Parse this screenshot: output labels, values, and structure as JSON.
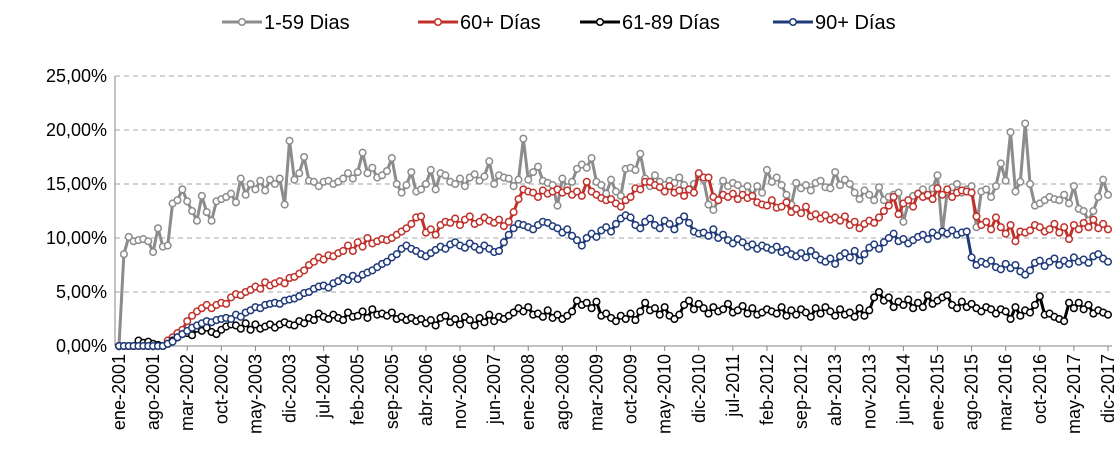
{
  "chart_data": {
    "type": "line",
    "legend": "top",
    "grid": true,
    "categories": [
      "ene-2001",
      null,
      null,
      null,
      null,
      null,
      null,
      "ago-2001",
      null,
      null,
      null,
      null,
      null,
      null,
      "mar-2002",
      null,
      null,
      null,
      null,
      null,
      null,
      "oct-2002",
      null,
      null,
      null,
      null,
      null,
      null,
      "may-2003",
      null,
      null,
      null,
      null,
      null,
      null,
      "dic-2003",
      null,
      null,
      null,
      null,
      null,
      null,
      "jul-2004",
      null,
      null,
      null,
      null,
      null,
      null,
      "feb-2005",
      null,
      null,
      null,
      null,
      null,
      null,
      "sep-2005",
      null,
      null,
      null,
      null,
      null,
      null,
      "abr-2006",
      null,
      null,
      null,
      null,
      null,
      null,
      "nov-2006",
      null,
      null,
      null,
      null,
      null,
      null,
      "jun-2007",
      null,
      null,
      null,
      null,
      null,
      null,
      "ene-2008",
      null,
      null,
      null,
      null,
      null,
      null,
      "ago-2008",
      null,
      null,
      null,
      null,
      null,
      null,
      "mar-2009",
      null,
      null,
      null,
      null,
      null,
      null,
      "oct-2009",
      null,
      null,
      null,
      null,
      null,
      null,
      "may-2010",
      null,
      null,
      null,
      null,
      null,
      null,
      "dic-2010",
      null,
      null,
      null,
      null,
      null,
      null,
      "jul-2011",
      null,
      null,
      null,
      null,
      null,
      null,
      "feb-2012",
      null,
      null,
      null,
      null,
      null,
      null,
      "sep-2012",
      null,
      null,
      null,
      null,
      null,
      null,
      "abr-2013",
      null,
      null,
      null,
      null,
      null,
      null,
      "nov-2013",
      null,
      null,
      null,
      null,
      null,
      null,
      "jun-2014",
      null,
      null,
      null,
      null,
      null,
      null,
      "ene-2015",
      null,
      null,
      null,
      null,
      null,
      null,
      "ago-2015",
      null,
      null,
      null,
      null,
      null,
      null,
      "mar-2016",
      null,
      null,
      null,
      null,
      null,
      null,
      "oct-2016",
      null,
      null,
      null,
      null,
      null,
      null,
      "may-2017",
      null,
      null,
      null,
      null,
      null,
      null,
      "dic-2017"
    ],
    "ylim": [
      0,
      25
    ],
    "yticks": [
      {
        "value": 0,
        "label": "0,00%"
      },
      {
        "value": 5,
        "label": "5,00%"
      },
      {
        "value": 10,
        "label": "10,00%"
      },
      {
        "value": 15,
        "label": "15,00%"
      },
      {
        "value": 20,
        "label": "20,00%"
      },
      {
        "value": 25,
        "label": "25,00%"
      }
    ],
    "series": [
      {
        "name": "1-59 Dias",
        "color": "#8c8c8c",
        "values": [
          0,
          8.5,
          10.1,
          9.7,
          9.8,
          9.9,
          9.7,
          8.7,
          10.9,
          9.2,
          9.3,
          13.2,
          13.5,
          14.5,
          13.4,
          12.5,
          11.6,
          13.9,
          12.4,
          11.6,
          13.4,
          13.6,
          13.8,
          14.1,
          13.3,
          15.5,
          14.0,
          15.0,
          14.5,
          15.3,
          14.4,
          15.4,
          15.0,
          15.5,
          13.1,
          19.0,
          15.4,
          16.0,
          17.5,
          15.3,
          15.2,
          14.8,
          15.2,
          15.3,
          15.0,
          15.2,
          15.5,
          16.0,
          15.5,
          16.1,
          17.9,
          16.0,
          16.5,
          15.6,
          15.8,
          16.2,
          17.4,
          15.0,
          14.2,
          14.9,
          16.1,
          14.3,
          14.5,
          15.0,
          16.3,
          14.5,
          16.0,
          15.8,
          15.2,
          15.0,
          15.5,
          14.8,
          15.6,
          15.9,
          15.3,
          15.7,
          17.1,
          15.0,
          15.8,
          15.6,
          15.5,
          14.8,
          15.4,
          19.2,
          15.4,
          16.1,
          16.6,
          15.3,
          15.1,
          14.9,
          13.0,
          15.5,
          14.7,
          15.2,
          16.4,
          16.8,
          16.5,
          17.4,
          15.2,
          14.9,
          14.1,
          15.4,
          14.3,
          13.9,
          16.4,
          16.5,
          16.3,
          17.8,
          15.5,
          14.8,
          15.8,
          15.2,
          14.9,
          15.3,
          15.1,
          15.6,
          14.9,
          14.5,
          15.0,
          15.7,
          15.4,
          13.1,
          12.6,
          13.5,
          15.3,
          14.8,
          15.1,
          14.9,
          14.5,
          14.8,
          13.9,
          14.8,
          14.2,
          16.3,
          15.2,
          15.6,
          14.9,
          14.0,
          13.1,
          15.1,
          14.6,
          14.9,
          14.4,
          15.1,
          15.3,
          14.7,
          14.6,
          16.1,
          14.9,
          15.4,
          15.0,
          14.2,
          13.6,
          14.4,
          14.0,
          13.5,
          14.7,
          13.5,
          13.8,
          14.0,
          14.2,
          11.5,
          13.2,
          13.9,
          14.1,
          14.5,
          13.9,
          14.6,
          15.8,
          10.5,
          14.3,
          14.7,
          15.0,
          14.2,
          14.5,
          14.8,
          11.0,
          14.3,
          14.5,
          13.8,
          14.8,
          16.9,
          15.3,
          19.8,
          14.3,
          15.2,
          20.6,
          15.0,
          13.0,
          13.2,
          13.5,
          13.8,
          13.6,
          13.5,
          14.0,
          13.2,
          14.8,
          12.7,
          12.5,
          11.6,
          12.5,
          13.8,
          15.4,
          14.0
        ]
      },
      {
        "name": "60+ Días",
        "color": "#c0312b",
        "values": [
          0,
          0,
          0,
          0,
          0,
          0,
          0,
          0,
          0,
          0,
          0.5,
          0.8,
          1.2,
          1.5,
          2.3,
          2.8,
          3.2,
          3.5,
          3.8,
          3.5,
          3.8,
          4.0,
          3.9,
          4.5,
          4.8,
          4.7,
          5.0,
          5.2,
          5.5,
          5.3,
          5.9,
          5.6,
          5.8,
          6.0,
          5.8,
          6.3,
          6.4,
          6.7,
          7.0,
          7.5,
          7.8,
          8.2,
          8.0,
          8.4,
          8.3,
          8.6,
          8.8,
          9.3,
          8.8,
          9.6,
          9.2,
          10.0,
          9.5,
          9.7,
          9.9,
          9.8,
          10.0,
          10.3,
          10.6,
          10.9,
          11.3,
          11.9,
          12.0,
          10.5,
          10.8,
          10.3,
          11.2,
          11.5,
          11.4,
          11.8,
          11.2,
          11.7,
          12.0,
          11.3,
          11.5,
          11.9,
          11.6,
          11.4,
          11.7,
          11.1,
          11.5,
          12.4,
          13.6,
          14.5,
          14.3,
          14.2,
          13.8,
          14.4,
          14.1,
          14.3,
          14.5,
          14.2,
          14.4,
          14.0,
          14.3,
          13.9,
          15.2,
          14.3,
          14.0,
          13.7,
          13.5,
          13.6,
          13.2,
          12.9,
          13.5,
          13.8,
          14.6,
          14.5,
          15.2,
          15.2,
          14.9,
          14.7,
          14.3,
          14.8,
          14.2,
          14.4,
          13.9,
          14.5,
          14.2,
          16.0,
          15.6,
          15.6,
          13.8,
          13.5,
          14.0,
          13.8,
          14.1,
          13.6,
          14.0,
          13.7,
          13.9,
          13.3,
          13.1,
          13.0,
          13.5,
          12.8,
          12.9,
          13.3,
          12.4,
          12.7,
          12.3,
          12.9,
          12.0,
          12.2,
          11.8,
          12.1,
          11.7,
          11.9,
          11.6,
          12.0,
          11.2,
          11.5,
          10.9,
          11.3,
          11.6,
          11.4,
          11.9,
          12.5,
          13.0,
          13.8,
          12.2,
          13.2,
          13.5,
          12.9,
          14.1,
          13.8,
          14.0,
          13.6,
          14.6,
          14.0,
          14.5,
          13.8,
          14.2,
          14.4,
          14.3,
          14.2,
          12.0,
          11.2,
          11.5,
          10.8,
          11.9,
          11.0,
          10.4,
          11.2,
          9.7,
          10.6,
          10.5,
          10.7,
          11.2,
          11.0,
          10.6,
          10.8,
          11.3,
          10.5,
          11.0,
          9.9,
          11.2,
          10.8,
          11.4,
          11.0,
          11.7,
          10.9,
          11.3,
          10.8
        ]
      },
      {
        "name": "61-89 Días",
        "color": "#000000",
        "values": [
          0,
          0,
          0,
          0,
          0.5,
          0.3,
          0.4,
          0.2,
          0.1,
          0,
          0.2,
          0.5,
          0.8,
          1.1,
          1.2,
          1.0,
          1.6,
          1.4,
          1.7,
          1.3,
          1.1,
          1.5,
          1.8,
          2.0,
          1.9,
          1.6,
          2.1,
          1.5,
          2.0,
          1.6,
          1.8,
          2.0,
          1.7,
          2.0,
          2.2,
          2.0,
          1.9,
          2.3,
          2.1,
          2.6,
          2.4,
          3.0,
          2.7,
          2.5,
          2.9,
          2.6,
          2.4,
          3.1,
          2.7,
          2.8,
          3.2,
          2.6,
          3.4,
          2.9,
          3.0,
          2.8,
          3.1,
          2.5,
          2.7,
          2.4,
          2.6,
          2.3,
          2.5,
          2.1,
          2.4,
          1.9,
          2.6,
          2.8,
          2.2,
          2.5,
          2.0,
          2.7,
          2.4,
          1.9,
          2.6,
          2.2,
          2.9,
          2.3,
          2.7,
          2.5,
          2.8,
          3.1,
          3.5,
          3.2,
          3.6,
          2.9,
          3.0,
          2.7,
          3.3,
          2.6,
          2.9,
          2.5,
          2.8,
          3.2,
          4.2,
          3.8,
          4.0,
          3.5,
          4.1,
          2.8,
          3.0,
          2.6,
          2.3,
          2.8,
          2.5,
          3.0,
          2.4,
          3.2,
          4.0,
          3.3,
          3.5,
          2.9,
          3.6,
          2.8,
          2.5,
          2.9,
          3.8,
          4.2,
          3.4,
          3.9,
          3.5,
          3.0,
          3.6,
          3.2,
          3.4,
          3.9,
          3.1,
          3.3,
          3.7,
          3.0,
          3.5,
          2.9,
          3.1,
          3.4,
          3.2,
          3.0,
          3.6,
          2.8,
          3.3,
          2.9,
          3.4,
          3.1,
          2.7,
          3.5,
          3.0,
          3.6,
          3.2,
          2.8,
          3.4,
          2.9,
          3.1,
          2.7,
          3.5,
          2.8,
          3.3,
          4.5,
          5.0,
          4.2,
          4.5,
          3.6,
          4.1,
          3.8,
          4.3,
          3.5,
          4.0,
          3.6,
          4.7,
          3.9,
          4.2,
          4.5,
          4.7,
          3.8,
          3.5,
          4.1,
          3.6,
          3.9,
          3.5,
          3.2,
          3.6,
          3.4,
          3.0,
          3.4,
          3.2,
          2.5,
          3.6,
          2.8,
          3.3,
          3.1,
          3.8,
          4.6,
          2.9,
          3.0,
          2.7,
          2.5,
          2.3,
          4.0,
          3.5,
          4.0,
          3.4,
          3.8,
          3.0,
          3.3,
          3.1,
          2.9
        ]
      },
      {
        "name": "90+ Días",
        "color": "#1f3a7a",
        "values": [
          0,
          0,
          0,
          0,
          0,
          0,
          0,
          0,
          0,
          0,
          0.2,
          0.4,
          0.8,
          1.1,
          1.4,
          1.7,
          1.9,
          2.1,
          2.3,
          2.2,
          2.4,
          2.5,
          2.6,
          2.5,
          2.9,
          2.7,
          3.1,
          3.3,
          3.6,
          3.5,
          3.8,
          3.9,
          4.0,
          3.9,
          4.2,
          4.3,
          4.4,
          4.6,
          4.9,
          5.0,
          5.3,
          5.5,
          5.6,
          5.4,
          5.8,
          6.0,
          6.3,
          6.1,
          6.5,
          6.2,
          6.6,
          6.8,
          7.0,
          7.3,
          7.6,
          7.8,
          8.2,
          8.5,
          9.0,
          9.3,
          9.0,
          8.8,
          8.5,
          8.3,
          8.6,
          8.9,
          9.2,
          9.0,
          9.4,
          9.6,
          9.3,
          9.1,
          9.5,
          9.2,
          8.9,
          9.3,
          9.0,
          8.7,
          8.8,
          9.6,
          10.3,
          10.9,
          11.3,
          11.2,
          11.0,
          10.8,
          11.2,
          11.5,
          11.4,
          11.1,
          10.9,
          10.5,
          10.8,
          10.2,
          9.8,
          9.3,
          10.0,
          10.4,
          10.1,
          10.7,
          11.0,
          10.6,
          11.3,
          11.8,
          12.1,
          11.9,
          11.2,
          10.9,
          11.5,
          11.8,
          11.2,
          10.9,
          11.6,
          11.3,
          10.8,
          11.6,
          12.0,
          11.4,
          10.6,
          10.4,
          10.5,
          10.2,
          10.8,
          10.0,
          10.3,
          9.8,
          9.5,
          9.9,
          9.6,
          9.2,
          9.4,
          9.0,
          9.3,
          9.1,
          8.9,
          9.2,
          8.7,
          8.9,
          8.5,
          8.3,
          8.6,
          8.2,
          8.8,
          8.4,
          8.0,
          7.8,
          8.1,
          7.6,
          8.3,
          8.6,
          8.2,
          8.8,
          7.9,
          8.5,
          9.1,
          9.4,
          9.0,
          9.6,
          10.0,
          10.4,
          9.7,
          9.9,
          9.5,
          9.8,
          10.1,
          10.3,
          9.9,
          10.5,
          10.2,
          10.6,
          10.4,
          10.7,
          10.3,
          10.5,
          10.6,
          8.2,
          7.5,
          7.8,
          7.6,
          7.9,
          7.3,
          7.1,
          7.6,
          7.2,
          7.5,
          6.9,
          6.6,
          7.0,
          7.7,
          7.9,
          7.4,
          7.8,
          8.1,
          7.5,
          7.9,
          7.6,
          8.2,
          7.8,
          8.0,
          7.7,
          8.3,
          8.5,
          8.1,
          7.8
        ]
      }
    ]
  }
}
